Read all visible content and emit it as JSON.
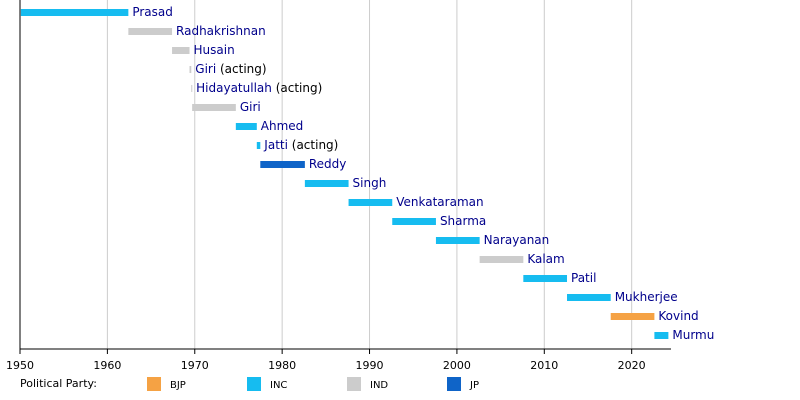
{
  "chart_data": {
    "type": "timeline",
    "xlim": [
      1950,
      2024.5
    ],
    "xticks": [
      1950,
      1960,
      1970,
      1980,
      1990,
      2000,
      2010,
      2020
    ],
    "grid": true,
    "legend_title": "Political Party:",
    "parties": [
      {
        "name": "BJP",
        "color": "#f5a244"
      },
      {
        "name": "INC",
        "color": "#16bcf0"
      },
      {
        "name": "IND",
        "color": "#cccccc"
      },
      {
        "name": "JP",
        "color": "#0f64c8"
      }
    ],
    "terms": [
      {
        "name": "Prasad",
        "party": "INC",
        "start": 1950.1,
        "end": 1962.4
      },
      {
        "name": "Radhakrishnan",
        "party": "IND",
        "start": 1962.4,
        "end": 1967.4
      },
      {
        "name": "Husain",
        "party": "IND",
        "start": 1967.4,
        "end": 1969.4
      },
      {
        "name": "Giri",
        "note": "(acting)",
        "party": "IND",
        "start": 1969.4,
        "end": 1969.6
      },
      {
        "name": "Hidayatullah",
        "note": "(acting)",
        "party": "IND",
        "start": 1969.6,
        "end": 1969.7
      },
      {
        "name": "Giri",
        "party": "IND",
        "start": 1969.7,
        "end": 1974.7
      },
      {
        "name": "Ahmed",
        "party": "INC",
        "start": 1974.7,
        "end": 1977.1
      },
      {
        "name": "Jatti",
        "note": "(acting)",
        "party": "INC",
        "start": 1977.1,
        "end": 1977.5
      },
      {
        "name": "Reddy",
        "party": "JP",
        "start": 1977.5,
        "end": 1982.6
      },
      {
        "name": "Singh",
        "party": "INC",
        "start": 1982.6,
        "end": 1987.6
      },
      {
        "name": "Venkataraman",
        "party": "INC",
        "start": 1987.6,
        "end": 1992.6
      },
      {
        "name": "Sharma",
        "party": "INC",
        "start": 1992.6,
        "end": 1997.6
      },
      {
        "name": "Narayanan",
        "party": "INC",
        "start": 1997.6,
        "end": 2002.6
      },
      {
        "name": "Kalam",
        "party": "IND",
        "start": 2002.6,
        "end": 2007.6
      },
      {
        "name": "Patil",
        "party": "INC",
        "start": 2007.6,
        "end": 2012.6
      },
      {
        "name": "Mukherjee",
        "party": "INC",
        "start": 2012.6,
        "end": 2017.6
      },
      {
        "name": "Kovind",
        "party": "BJP",
        "start": 2017.6,
        "end": 2022.6
      },
      {
        "name": "Murmu",
        "party": "INC",
        "start": 2022.6,
        "end": 2024.2
      }
    ]
  }
}
